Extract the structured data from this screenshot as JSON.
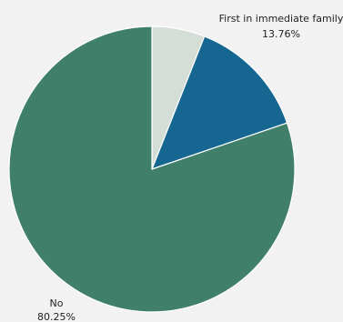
{
  "chart_data": {
    "type": "pie",
    "title": "",
    "slices": [
      {
        "label": "",
        "value": 5.99,
        "color": "#d4ddd6",
        "show_label": false
      },
      {
        "label": "First in immediate family",
        "value": 13.76,
        "display": "13.76%",
        "color": "#156791",
        "show_label": true
      },
      {
        "label": "No",
        "value": 80.25,
        "display": "80.25%",
        "color": "#40806a",
        "show_label": true
      }
    ],
    "start_angle": "12 o'clock",
    "direction": "clockwise",
    "legend": "none"
  }
}
